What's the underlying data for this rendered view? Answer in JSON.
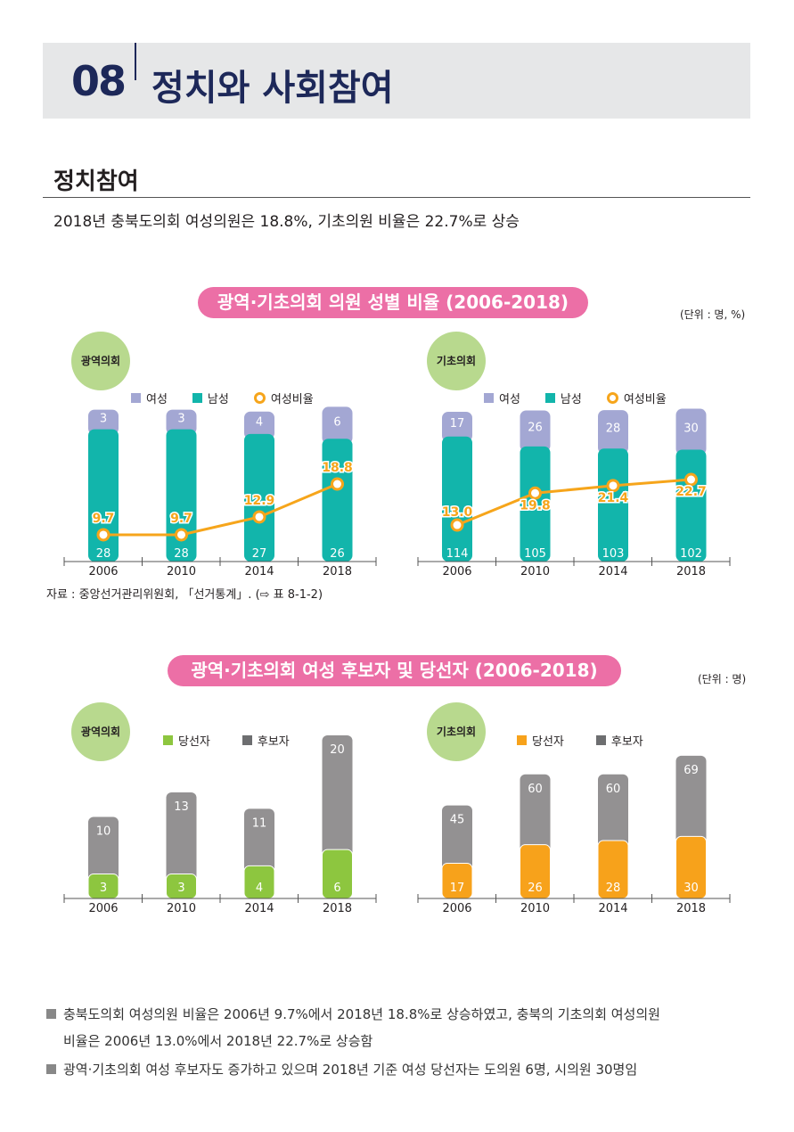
{
  "header": {
    "chapter": "08",
    "title": "정치와 사회참여"
  },
  "section": {
    "title": "정치참여",
    "lead": "2018년 충북도의회 여성의원은 18.8%, 기초의원 비율은 22.7%로 상승"
  },
  "chart1": {
    "title": "광역·기초의회 의원 성별 비율 (2006-2018)",
    "unit": "(단위 : 명, %)",
    "legend": [
      "여성",
      "남성",
      "여성비율"
    ],
    "source": "자료 : 중앙선거관리위원회, 「선거통계」. (⇨ 표 8-1-2)"
  },
  "chart2": {
    "title": "광역·기초의회 여성 후보자 및 당선자 (2006-2018)",
    "unit": "(단위 : 명)",
    "legend": [
      "당선자",
      "후보자"
    ]
  },
  "colors": {
    "female": "#a3a7d3",
    "male": "#12b5ab",
    "ratio": "#f6a51b",
    "winner_regional": "#8dc63f",
    "winner_local": "#f7a21b",
    "candidate": "#939192",
    "pill": "#ec6fa6",
    "badge": "#b8d98e"
  },
  "chart_data": [
    {
      "type": "bar",
      "stacked": true,
      "label": "광역의회",
      "categories": [
        "2006",
        "2010",
        "2014",
        "2018"
      ],
      "series": [
        {
          "name": "남성",
          "values": [
            28,
            28,
            27,
            26
          ]
        },
        {
          "name": "여성",
          "values": [
            3,
            3,
            4,
            6
          ]
        },
        {
          "name": "여성비율",
          "type": "line",
          "values": [
            9.7,
            9.7,
            12.9,
            18.8
          ]
        }
      ]
    },
    {
      "type": "bar",
      "stacked": true,
      "label": "기초의회",
      "categories": [
        "2006",
        "2010",
        "2014",
        "2018"
      ],
      "series": [
        {
          "name": "남성",
          "values": [
            114,
            105,
            103,
            102
          ]
        },
        {
          "name": "여성",
          "values": [
            17,
            26,
            28,
            30
          ]
        },
        {
          "name": "여성비율",
          "type": "line",
          "values": [
            13.0,
            19.8,
            21.4,
            22.7
          ]
        }
      ]
    },
    {
      "type": "bar",
      "label": "광역의회",
      "categories": [
        "2006",
        "2010",
        "2014",
        "2018"
      ],
      "series": [
        {
          "name": "당선자",
          "values": [
            3,
            3,
            4,
            6
          ]
        },
        {
          "name": "후보자",
          "values": [
            10,
            13,
            11,
            20
          ]
        }
      ]
    },
    {
      "type": "bar",
      "label": "기초의회",
      "categories": [
        "2006",
        "2010",
        "2014",
        "2018"
      ],
      "series": [
        {
          "name": "당선자",
          "values": [
            17,
            26,
            28,
            30
          ]
        },
        {
          "name": "후보자",
          "values": [
            45,
            60,
            60,
            69
          ]
        }
      ]
    }
  ],
  "bullets": [
    "충북도의회 여성의원 비율은 2006년 9.7%에서 2018년 18.8%로 상승하였고, 충북의 기초의회 여성의원",
    "비율은 2006년 13.0%에서 2018년 22.7%로 상승함",
    "광역·기초의회 여성 후보자도 증가하고 있으며 2018년 기준 여성 당선자는 도의원 6명, 시의원 30명임"
  ]
}
